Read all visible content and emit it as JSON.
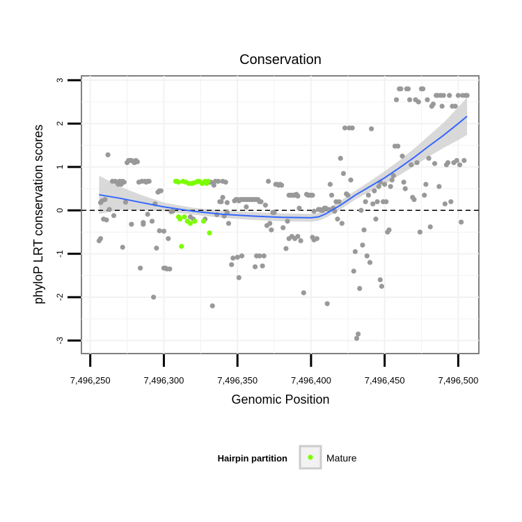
{
  "chart_data": {
    "type": "scatter",
    "title": "Conservation",
    "xlabel": "Genomic Position",
    "ylabel": "phyloP LRT conservation scores",
    "xlim": [
      7496244,
      7496514
    ],
    "ylim": [
      -3.3,
      3.1
    ],
    "x_ticks": [
      7496250,
      7496300,
      7496350,
      7496400,
      7496450,
      7496500
    ],
    "x_tick_labels": [
      "7,496,250",
      "7,496,300",
      "7,496,350",
      "7,496,400",
      "7,496,450",
      "7,496,500"
    ],
    "y_ticks": [
      -3,
      -2,
      -1,
      0,
      1,
      2,
      3
    ],
    "y_tick_labels": [
      "-3",
      "-2",
      "-1",
      "0",
      "1",
      "2",
      "3"
    ],
    "reference_line": {
      "y": 0,
      "style": "dashed"
    },
    "legend": {
      "title": "Hairpin partition",
      "entries": [
        "Mature"
      ],
      "position": "bottom"
    },
    "colors": {
      "other": "#999999",
      "mature": "#7cfc00",
      "smooth": "#3366ff",
      "band": "#cccccc"
    },
    "series": [
      {
        "name": "Other",
        "points": [
          [
            7496256,
            -0.7
          ],
          [
            7496257,
            -0.65
          ],
          [
            7496257,
            0.18
          ],
          [
            7496258,
            0.22
          ],
          [
            7496259,
            -0.2
          ],
          [
            7496260,
            0.25
          ],
          [
            7496261,
            -0.22
          ],
          [
            7496262,
            1.28
          ],
          [
            7496263,
            0.02
          ],
          [
            7496265,
            0.67
          ],
          [
            7496266,
            -0.12
          ],
          [
            7496267,
            0.67
          ],
          [
            7496268,
            0.65
          ],
          [
            7496269,
            0.6
          ],
          [
            7496270,
            0.67
          ],
          [
            7496271,
            0.6
          ],
          [
            7496272,
            0.67
          ],
          [
            7496272,
            -0.85
          ],
          [
            7496273,
            0.65
          ],
          [
            7496274,
            0.19
          ],
          [
            7496275,
            1.1
          ],
          [
            7496276,
            1.15
          ],
          [
            7496277,
            1.15
          ],
          [
            7496278,
            1.15
          ],
          [
            7496279,
            1.13
          ],
          [
            7496280,
            1.1
          ],
          [
            7496281,
            1.15
          ],
          [
            7496278,
            -0.32
          ],
          [
            7496282,
            1.12
          ],
          [
            7496283,
            0.65
          ],
          [
            7496284,
            -1.33
          ],
          [
            7496285,
            0.67
          ],
          [
            7496286,
            -0.32
          ],
          [
            7496287,
            0.67
          ],
          [
            7496288,
            0.65
          ],
          [
            7496289,
            0.67
          ],
          [
            7496290,
            0.67
          ],
          [
            7496286,
            -0.28
          ],
          [
            7496289,
            -0.09
          ],
          [
            7496292,
            -0.25
          ],
          [
            7496293,
            -2.0
          ],
          [
            7496294,
            0.15
          ],
          [
            7496295,
            -0.87
          ],
          [
            7496296,
            0.42
          ],
          [
            7496297,
            0.45
          ],
          [
            7496298,
            0.45
          ],
          [
            7496297,
            -0.47
          ],
          [
            7496300,
            -0.48
          ],
          [
            7496300,
            -1.33
          ],
          [
            7496301,
            -1.33
          ],
          [
            7496302,
            -1.35
          ],
          [
            7496303,
            -0.65
          ],
          [
            7496304,
            -1.35
          ],
          [
            7496305,
            -0.03
          ],
          [
            7496306,
            -0.02
          ],
          [
            7496318,
            -0.15
          ],
          [
            7496320,
            -0.2
          ],
          [
            7496328,
            -0.2
          ],
          [
            7496331,
            0.65
          ],
          [
            7496332,
            0.65
          ],
          [
            7496333,
            -2.2
          ],
          [
            7496334,
            0.58
          ],
          [
            7496335,
            0.67
          ],
          [
            7496336,
            -0.1
          ],
          [
            7496337,
            0.67
          ],
          [
            7496338,
            0.2
          ],
          [
            7496339,
            0.2
          ],
          [
            7496340,
            0.67
          ],
          [
            7496340,
            0.3
          ],
          [
            7496341,
            -0.13
          ],
          [
            7496342,
            0.65
          ],
          [
            7496343,
            0.18
          ],
          [
            7496343,
            -0.05
          ],
          [
            7496344,
            -0.3
          ],
          [
            7496346,
            -1.25
          ],
          [
            7496347,
            -1.1
          ],
          [
            7496348,
            0.22
          ],
          [
            7496349,
            0.25
          ],
          [
            7496350,
            0.25
          ],
          [
            7496351,
            0.22
          ],
          [
            7496352,
            0.25
          ],
          [
            7496353,
            0.25
          ],
          [
            7496354,
            0.25
          ],
          [
            7496355,
            0.25
          ],
          [
            7496356,
            0.25
          ],
          [
            7496350,
            -1.08
          ],
          [
            7496351,
            -1.55
          ],
          [
            7496353,
            -1.05
          ],
          [
            7496356,
            0.08
          ],
          [
            7496357,
            0.25
          ],
          [
            7496358,
            0.25
          ],
          [
            7496359,
            0.25
          ],
          [
            7496360,
            0.25
          ],
          [
            7496361,
            0.25
          ],
          [
            7496362,
            0.25
          ],
          [
            7496363,
            0.25
          ],
          [
            7496364,
            0.25
          ],
          [
            7496365,
            0.2
          ],
          [
            7496362,
            -1.3
          ],
          [
            7496363,
            -1.05
          ],
          [
            7496365,
            -1.05
          ],
          [
            7496366,
            0.2
          ],
          [
            7496367,
            -1.28
          ],
          [
            7496368,
            -1.05
          ],
          [
            7496369,
            0.12
          ],
          [
            7496370,
            -0.35
          ],
          [
            7496371,
            0.67
          ],
          [
            7496372,
            -0.3
          ],
          [
            7496373,
            -0.45
          ],
          [
            7496374,
            -0.05
          ],
          [
            7496375,
            -0.05
          ],
          [
            7496376,
            0.6
          ],
          [
            7496377,
            0.6
          ],
          [
            7496378,
            0.58
          ],
          [
            7496379,
            0.6
          ],
          [
            7496380,
            0.58
          ],
          [
            7496381,
            -0.4
          ],
          [
            7496383,
            -0.88
          ],
          [
            7496384,
            -0.25
          ],
          [
            7496385,
            0.35
          ],
          [
            7496386,
            0.35
          ],
          [
            7496387,
            0.35
          ],
          [
            7496388,
            0.35
          ],
          [
            7496389,
            0.35
          ],
          [
            7496390,
            0.37
          ],
          [
            7496391,
            0.33
          ],
          [
            7496385,
            -0.65
          ],
          [
            7496387,
            -0.6
          ],
          [
            7496389,
            -0.65
          ],
          [
            7496391,
            -0.6
          ],
          [
            7496393,
            -0.7
          ],
          [
            7496392,
            0.05
          ],
          [
            7496395,
            -1.9
          ],
          [
            7496397,
            0.37
          ],
          [
            7496398,
            0.35
          ],
          [
            7496399,
            0.35
          ],
          [
            7496400,
            0.35
          ],
          [
            7496401,
            0.35
          ],
          [
            7496402,
            -0.02
          ],
          [
            7496401,
            -0.62
          ],
          [
            7496402,
            -0.68
          ],
          [
            7496404,
            -0.65
          ],
          [
            7496405,
            0.02
          ],
          [
            7496406,
            0.02
          ],
          [
            7496407,
            0.0
          ],
          [
            7496408,
            0.0
          ],
          [
            7496409,
            0.05
          ],
          [
            7496410,
            0.05
          ],
          [
            7496411,
            -2.15
          ],
          [
            7496412,
            0.02
          ],
          [
            7496413,
            0.6
          ],
          [
            7496414,
            0.35
          ],
          [
            7496415,
            0.05
          ],
          [
            7496416,
            -0.02
          ],
          [
            7496417,
            0.2
          ],
          [
            7496418,
            -0.2
          ],
          [
            7496419,
            0.2
          ],
          [
            7496420,
            1.2
          ],
          [
            7496421,
            -0.3
          ],
          [
            7496422,
            0.85
          ],
          [
            7496423,
            1.9
          ],
          [
            7496424,
            0.38
          ],
          [
            7496425,
            0.35
          ],
          [
            7496426,
            1.9
          ],
          [
            7496427,
            0.7
          ],
          [
            7496428,
            1.9
          ],
          [
            7496429,
            -1.4
          ],
          [
            7496430,
            -0.95
          ],
          [
            7496431,
            -2.95
          ],
          [
            7496432,
            -2.85
          ],
          [
            7496433,
            -1.8
          ],
          [
            7496434,
            0.0
          ],
          [
            7496435,
            -0.8
          ],
          [
            7496436,
            -0.45
          ],
          [
            7496437,
            0.2
          ],
          [
            7496438,
            -1.05
          ],
          [
            7496439,
            0.35
          ],
          [
            7496440,
            -1.2
          ],
          [
            7496441,
            1.88
          ],
          [
            7496442,
            0.15
          ],
          [
            7496443,
            0.45
          ],
          [
            7496444,
            -0.2
          ],
          [
            7496445,
            0.2
          ],
          [
            7496446,
            0.55
          ],
          [
            7496447,
            0.65
          ],
          [
            7496447,
            -1.6
          ],
          [
            7496448,
            -1.75
          ],
          [
            7496449,
            0.2
          ],
          [
            7496450,
            0.6
          ],
          [
            7496451,
            0.2
          ],
          [
            7496452,
            -0.5
          ],
          [
            7496453,
            -0.45
          ],
          [
            7496454,
            0.55
          ],
          [
            7496455,
            0.7
          ],
          [
            7496456,
            0.8
          ],
          [
            7496457,
            1.48
          ],
          [
            7496458,
            2.55
          ],
          [
            7496459,
            1.48
          ],
          [
            7496460,
            2.8
          ],
          [
            7496461,
            2.8
          ],
          [
            7496462,
            1.25
          ],
          [
            7496463,
            0.65
          ],
          [
            7496464,
            0.5
          ],
          [
            7496465,
            2.8
          ],
          [
            7496466,
            2.8
          ],
          [
            7496467,
            2.55
          ],
          [
            7496468,
            1.05
          ],
          [
            7496469,
            0.3
          ],
          [
            7496470,
            0.25
          ],
          [
            7496471,
            2.55
          ],
          [
            7496472,
            1.1
          ],
          [
            7496473,
            2.5
          ],
          [
            7496474,
            -0.5
          ],
          [
            7496475,
            2.8
          ],
          [
            7496476,
            2.8
          ],
          [
            7496477,
            0.35
          ],
          [
            7496478,
            0.6
          ],
          [
            7496479,
            2.55
          ],
          [
            7496480,
            1.2
          ],
          [
            7496481,
            -0.38
          ],
          [
            7496482,
            2.4
          ],
          [
            7496483,
            2.45
          ],
          [
            7496484,
            1.08
          ],
          [
            7496485,
            2.65
          ],
          [
            7496486,
            2.65
          ],
          [
            7496487,
            0.55
          ],
          [
            7496488,
            2.65
          ],
          [
            7496489,
            2.4
          ],
          [
            7496490,
            2.65
          ],
          [
            7496491,
            0.15
          ],
          [
            7496492,
            1.05
          ],
          [
            7496493,
            1.1
          ],
          [
            7496494,
            2.65
          ],
          [
            7496495,
            0.2
          ],
          [
            7496496,
            2.4
          ],
          [
            7496497,
            1.1
          ],
          [
            7496498,
            2.4
          ],
          [
            7496499,
            1.15
          ],
          [
            7496500,
            2.65
          ],
          [
            7496501,
            1.05
          ],
          [
            7496502,
            -0.27
          ],
          [
            7496503,
            2.65
          ],
          [
            7496504,
            1.15
          ],
          [
            7496505,
            2.65
          ],
          [
            7496506,
            2.65
          ]
        ]
      },
      {
        "name": "Mature",
        "points": [
          [
            7496308,
            0.67
          ],
          [
            7496309,
            0.67
          ],
          [
            7496310,
            0.65
          ],
          [
            7496310,
            -0.15
          ],
          [
            7496311,
            -0.2
          ],
          [
            7496312,
            -0.83
          ],
          [
            7496313,
            0.67
          ],
          [
            7496314,
            -0.15
          ],
          [
            7496315,
            0.65
          ],
          [
            7496316,
            -0.25
          ],
          [
            7496317,
            0.62
          ],
          [
            7496318,
            -0.3
          ],
          [
            7496319,
            0.62
          ],
          [
            7496320,
            0.63
          ],
          [
            7496321,
            -0.25
          ],
          [
            7496322,
            0.65
          ],
          [
            7496323,
            0.67
          ],
          [
            7496324,
            0.67
          ],
          [
            7496325,
            0.65
          ],
          [
            7496326,
            0.62
          ],
          [
            7496327,
            -0.25
          ],
          [
            7496328,
            0.67
          ],
          [
            7496329,
            0.62
          ],
          [
            7496330,
            0.67
          ],
          [
            7496331,
            -0.52
          ]
        ]
      }
    ],
    "smooth": {
      "name": "trend",
      "x": [
        7496256,
        7496270,
        7496285,
        7496300,
        7496320,
        7496340,
        7496360,
        7496380,
        7496400,
        7496405,
        7496410,
        7496420,
        7496430,
        7496440,
        7496450,
        7496460,
        7496470,
        7496480,
        7496490,
        7496500,
        7496506
      ],
      "y": [
        0.36,
        0.28,
        0.18,
        0.08,
        -0.02,
        -0.09,
        -0.13,
        -0.16,
        -0.17,
        -0.15,
        -0.08,
        0.12,
        0.35,
        0.55,
        0.75,
        0.98,
        1.22,
        1.48,
        1.73,
        2.0,
        2.17
      ],
      "upper": [
        0.8,
        0.55,
        0.35,
        0.18,
        0.06,
        -0.01,
        -0.04,
        -0.07,
        -0.08,
        -0.06,
        0.01,
        0.22,
        0.45,
        0.67,
        0.9,
        1.15,
        1.42,
        1.72,
        2.02,
        2.38,
        2.6
      ],
      "lower": [
        -0.08,
        0.01,
        0.01,
        -0.02,
        -0.1,
        -0.17,
        -0.22,
        -0.25,
        -0.26,
        -0.24,
        -0.17,
        0.02,
        0.25,
        0.43,
        0.6,
        0.81,
        1.02,
        1.24,
        1.44,
        1.62,
        1.74
      ]
    }
  }
}
